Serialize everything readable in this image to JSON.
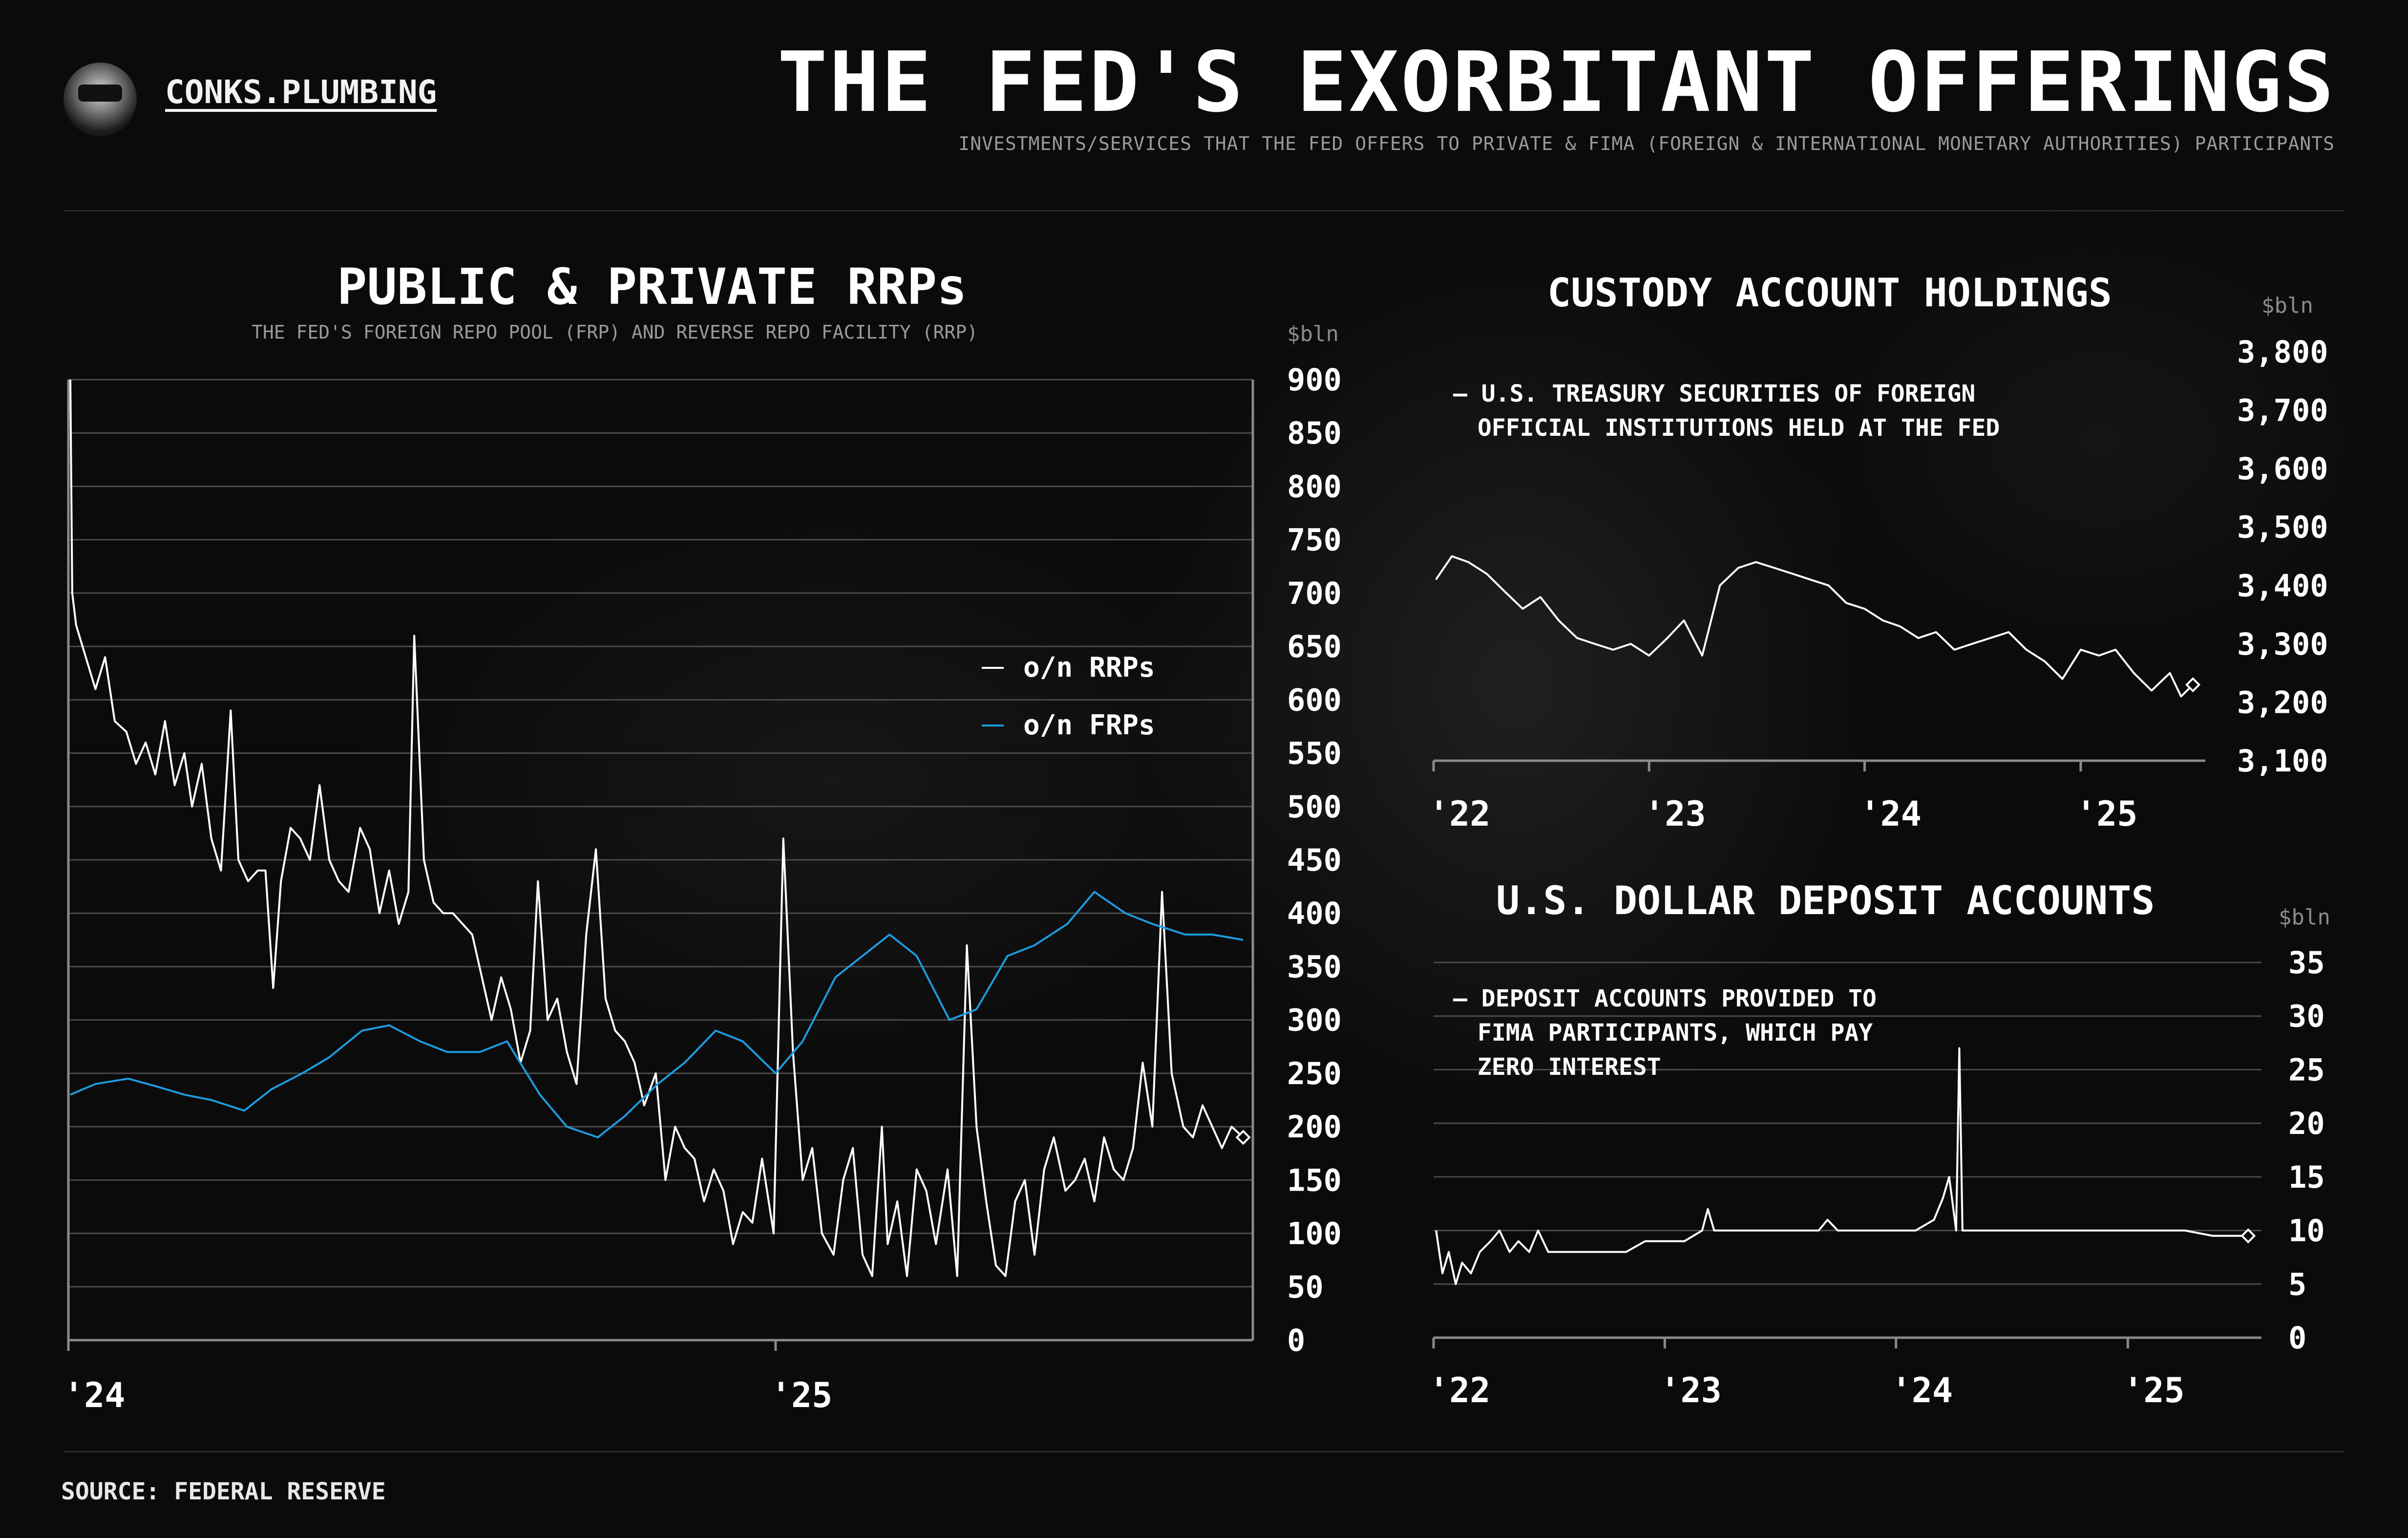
{
  "header": {
    "brand": "CONKS.PLUMBING",
    "title": "THE FED'S EXORBITANT OFFERINGS",
    "subtitle": "INVESTMENTS/SERVICES THAT THE FED OFFERS TO PRIVATE & FIMA (FOREIGN & INTERNATIONAL MONETARY AUTHORITIES) PARTICIPANTS"
  },
  "footer": {
    "source": "SOURCE: FEDERAL RESERVE"
  },
  "colors": {
    "white_series": "#ffffff",
    "blue_series": "#1e9be0",
    "grid": "#4a4a4a",
    "axis": "#8a8a8a"
  },
  "chart_data": [
    {
      "id": "rrp",
      "type": "line",
      "title": "PUBLIC & PRIVATE RRPs",
      "subtitle": "THE FED'S FOREIGN REPO POOL (FRP) AND REVERSE REPO FACILITY (RRP)",
      "unit": "$bln",
      "ylim": [
        0,
        900
      ],
      "yticks": [
        0,
        50,
        100,
        150,
        200,
        250,
        300,
        350,
        400,
        450,
        500,
        550,
        600,
        650,
        700,
        750,
        800,
        850,
        900
      ],
      "xlim": [
        "2024-01-01",
        "2025-09-05"
      ],
      "xticks": [
        {
          "x": "2024-01-01",
          "label": "'24"
        },
        {
          "x": "2025-01-01",
          "label": "'25"
        }
      ],
      "grid": true,
      "legend_position": "right",
      "series": [
        {
          "name": "o/n RRPs",
          "color": "#ffffff",
          "x": [
            "2024-01-02",
            "2024-01-03",
            "2024-01-05",
            "2024-01-10",
            "2024-01-15",
            "2024-01-20",
            "2024-01-25",
            "2024-01-31",
            "2024-02-05",
            "2024-02-10",
            "2024-02-15",
            "2024-02-20",
            "2024-02-25",
            "2024-03-01",
            "2024-03-05",
            "2024-03-10",
            "2024-03-15",
            "2024-03-20",
            "2024-03-25",
            "2024-03-29",
            "2024-04-03",
            "2024-04-08",
            "2024-04-12",
            "2024-04-16",
            "2024-04-20",
            "2024-04-25",
            "2024-04-30",
            "2024-05-05",
            "2024-05-10",
            "2024-05-15",
            "2024-05-20",
            "2024-05-25",
            "2024-05-31",
            "2024-06-05",
            "2024-06-10",
            "2024-06-15",
            "2024-06-20",
            "2024-06-25",
            "2024-06-28",
            "2024-07-03",
            "2024-07-08",
            "2024-07-13",
            "2024-07-18",
            "2024-07-23",
            "2024-07-28",
            "2024-08-02",
            "2024-08-07",
            "2024-08-12",
            "2024-08-17",
            "2024-08-22",
            "2024-08-27",
            "2024-08-31",
            "2024-09-05",
            "2024-09-10",
            "2024-09-15",
            "2024-09-20",
            "2024-09-25",
            "2024-09-30",
            "2024-10-05",
            "2024-10-10",
            "2024-10-15",
            "2024-10-20",
            "2024-10-25",
            "2024-10-31",
            "2024-11-05",
            "2024-11-10",
            "2024-11-15",
            "2024-11-20",
            "2024-11-25",
            "2024-11-30",
            "2024-12-05",
            "2024-12-10",
            "2024-12-15",
            "2024-12-20",
            "2024-12-25",
            "2024-12-31",
            "2025-01-05",
            "2025-01-10",
            "2025-01-15",
            "2025-01-20",
            "2025-01-25",
            "2025-01-31",
            "2025-02-05",
            "2025-02-10",
            "2025-02-15",
            "2025-02-20",
            "2025-02-25",
            "2025-02-28",
            "2025-03-05",
            "2025-03-10",
            "2025-03-15",
            "2025-03-20",
            "2025-03-25",
            "2025-03-31",
            "2025-04-05",
            "2025-04-10",
            "2025-04-15",
            "2025-04-20",
            "2025-04-25",
            "2025-04-30",
            "2025-05-05",
            "2025-05-10",
            "2025-05-15",
            "2025-05-20",
            "2025-05-25",
            "2025-05-31",
            "2025-06-05",
            "2025-06-10",
            "2025-06-15",
            "2025-06-20",
            "2025-06-25",
            "2025-06-30",
            "2025-07-05",
            "2025-07-10",
            "2025-07-15",
            "2025-07-20",
            "2025-07-25",
            "2025-07-31",
            "2025-08-05",
            "2025-08-10",
            "2025-08-15",
            "2025-08-20",
            "2025-08-25",
            "2025-08-31"
          ],
          "y": [
            900,
            700,
            670,
            640,
            610,
            640,
            580,
            570,
            540,
            560,
            530,
            580,
            520,
            550,
            500,
            540,
            470,
            440,
            590,
            450,
            430,
            440,
            440,
            330,
            430,
            480,
            470,
            450,
            520,
            450,
            430,
            420,
            480,
            460,
            400,
            440,
            390,
            420,
            660,
            450,
            410,
            400,
            400,
            390,
            380,
            340,
            300,
            340,
            310,
            260,
            290,
            430,
            300,
            320,
            270,
            240,
            380,
            460,
            320,
            290,
            280,
            260,
            220,
            250,
            150,
            200,
            180,
            170,
            130,
            160,
            140,
            90,
            120,
            110,
            170,
            100,
            470,
            270,
            150,
            180,
            100,
            80,
            150,
            180,
            80,
            60,
            200,
            90,
            130,
            60,
            160,
            140,
            90,
            160,
            60,
            370,
            200,
            130,
            70,
            60,
            130,
            150,
            80,
            160,
            190,
            140,
            150,
            170,
            130,
            190,
            160,
            150,
            180,
            260,
            200,
            420,
            250,
            200,
            190,
            220,
            200,
            180,
            200,
            190
          ]
        },
        {
          "name": "o/n FRPs",
          "color": "#1e9be0",
          "x": [
            "2024-01-02",
            "2024-01-15",
            "2024-02-01",
            "2024-02-15",
            "2024-03-01",
            "2024-03-15",
            "2024-04-01",
            "2024-04-15",
            "2024-05-01",
            "2024-05-15",
            "2024-06-01",
            "2024-06-15",
            "2024-07-01",
            "2024-07-15",
            "2024-08-01",
            "2024-08-15",
            "2024-09-01",
            "2024-09-15",
            "2024-10-01",
            "2024-10-15",
            "2024-11-01",
            "2024-11-15",
            "2024-12-01",
            "2024-12-15",
            "2025-01-01",
            "2025-01-15",
            "2025-02-01",
            "2025-02-15",
            "2025-03-01",
            "2025-03-15",
            "2025-04-01",
            "2025-04-15",
            "2025-05-01",
            "2025-05-15",
            "2025-06-01",
            "2025-06-15",
            "2025-07-01",
            "2025-07-15",
            "2025-08-01",
            "2025-08-15",
            "2025-08-31"
          ],
          "y": [
            230,
            240,
            245,
            238,
            230,
            225,
            215,
            235,
            250,
            265,
            290,
            295,
            280,
            270,
            270,
            280,
            230,
            200,
            190,
            210,
            240,
            260,
            290,
            280,
            250,
            280,
            340,
            360,
            380,
            360,
            300,
            310,
            360,
            370,
            390,
            420,
            400,
            390,
            380,
            380,
            375
          ]
        }
      ]
    },
    {
      "id": "custody",
      "type": "line",
      "title": "CUSTODY ACCOUNT HOLDINGS",
      "unit": "$bln",
      "annotation": "— U.S. TREASURY SECURITIES OF FOREIGN\nOFFICIAL INSTITUTIONS HELD AT THE FED",
      "ylim": [
        3100,
        3800
      ],
      "yticks": [
        3100,
        3200,
        3300,
        3400,
        3500,
        3600,
        3700,
        3800
      ],
      "ytick_labels": [
        "3,100",
        "3,200",
        "3,300",
        "3,400",
        "3,500",
        "3,600",
        "3,700",
        "3,800"
      ],
      "xlim": [
        "2022-01-01",
        "2025-07-31"
      ],
      "xticks": [
        {
          "x": "2022-01-01",
          "label": "'22"
        },
        {
          "x": "2023-01-01",
          "label": "'23"
        },
        {
          "x": "2024-01-01",
          "label": "'24"
        },
        {
          "x": "2025-01-01",
          "label": "'25"
        }
      ],
      "grid": false,
      "series": [
        {
          "name": "",
          "color": "#ffffff",
          "x": [
            "2022-01-05",
            "2022-02-01",
            "2022-03-01",
            "2022-04-01",
            "2022-05-01",
            "2022-06-01",
            "2022-07-01",
            "2022-08-01",
            "2022-09-01",
            "2022-10-01",
            "2022-11-01",
            "2022-12-01",
            "2023-01-01",
            "2023-02-01",
            "2023-03-01",
            "2023-04-01",
            "2023-05-01",
            "2023-06-01",
            "2023-07-01",
            "2023-08-01",
            "2023-09-01",
            "2023-10-01",
            "2023-11-01",
            "2023-12-01",
            "2024-01-01",
            "2024-02-01",
            "2024-03-01",
            "2024-04-01",
            "2024-05-01",
            "2024-06-01",
            "2024-07-01",
            "2024-08-01",
            "2024-09-01",
            "2024-10-01",
            "2024-11-01",
            "2024-12-01",
            "2025-01-01",
            "2025-02-01",
            "2025-03-01",
            "2025-04-01",
            "2025-05-01",
            "2025-06-01",
            "2025-06-20",
            "2025-07-10"
          ],
          "y": [
            3410,
            3450,
            3440,
            3420,
            3390,
            3360,
            3380,
            3340,
            3310,
            3300,
            3290,
            3300,
            3280,
            3310,
            3340,
            3280,
            3400,
            3430,
            3440,
            3430,
            3420,
            3410,
            3400,
            3370,
            3360,
            3340,
            3330,
            3310,
            3320,
            3290,
            3300,
            3310,
            3320,
            3290,
            3270,
            3240,
            3290,
            3280,
            3290,
            3250,
            3220,
            3250,
            3210,
            3230
          ]
        }
      ]
    },
    {
      "id": "deposits",
      "type": "line",
      "title": "U.S. DOLLAR DEPOSIT ACCOUNTS",
      "unit": "$bln",
      "annotation": "— DEPOSIT ACCOUNTS PROVIDED TO\nFIMA PARTICIPANTS, WHICH PAY\nZERO INTEREST",
      "ylim": [
        0,
        35
      ],
      "yticks": [
        0,
        5,
        10,
        15,
        20,
        25,
        30,
        35
      ],
      "xlim": [
        "2022-01-01",
        "2025-07-31"
      ],
      "xticks": [
        {
          "x": "2022-01-01",
          "label": "'22"
        },
        {
          "x": "2023-01-01",
          "label": "'23"
        },
        {
          "x": "2024-01-01",
          "label": "'24"
        },
        {
          "x": "2025-01-01",
          "label": "'25"
        }
      ],
      "grid": true,
      "series": [
        {
          "name": "",
          "color": "#ffffff",
          "x": [
            "2022-01-05",
            "2022-01-15",
            "2022-01-25",
            "2022-02-05",
            "2022-02-15",
            "2022-03-01",
            "2022-03-15",
            "2022-04-01",
            "2022-04-15",
            "2022-05-01",
            "2022-05-15",
            "2022-06-01",
            "2022-06-15",
            "2022-07-01",
            "2022-08-01",
            "2022-09-01",
            "2022-10-01",
            "2022-11-01",
            "2022-12-01",
            "2023-01-01",
            "2023-02-01",
            "2023-03-01",
            "2023-03-10",
            "2023-03-20",
            "2023-05-01",
            "2023-07-01",
            "2023-09-01",
            "2023-09-15",
            "2023-10-01",
            "2023-12-01",
            "2024-02-01",
            "2024-03-01",
            "2024-03-15",
            "2024-03-25",
            "2024-04-05",
            "2024-04-10",
            "2024-04-15",
            "2024-04-20",
            "2024-06-01",
            "2024-09-01",
            "2024-12-01",
            "2025-02-01",
            "2025-04-01",
            "2025-05-15",
            "2025-07-10"
          ],
          "y": [
            10,
            6,
            8,
            5,
            7,
            6,
            8,
            9,
            10,
            8,
            9,
            8,
            10,
            8,
            8,
            8,
            8,
            8,
            9,
            9,
            9,
            10,
            12,
            10,
            10,
            10,
            10,
            11,
            10,
            10,
            10,
            11,
            13,
            15,
            10,
            27,
            10,
            10,
            10,
            10,
            10,
            10,
            10,
            9.5,
            9.5
          ]
        }
      ]
    }
  ]
}
